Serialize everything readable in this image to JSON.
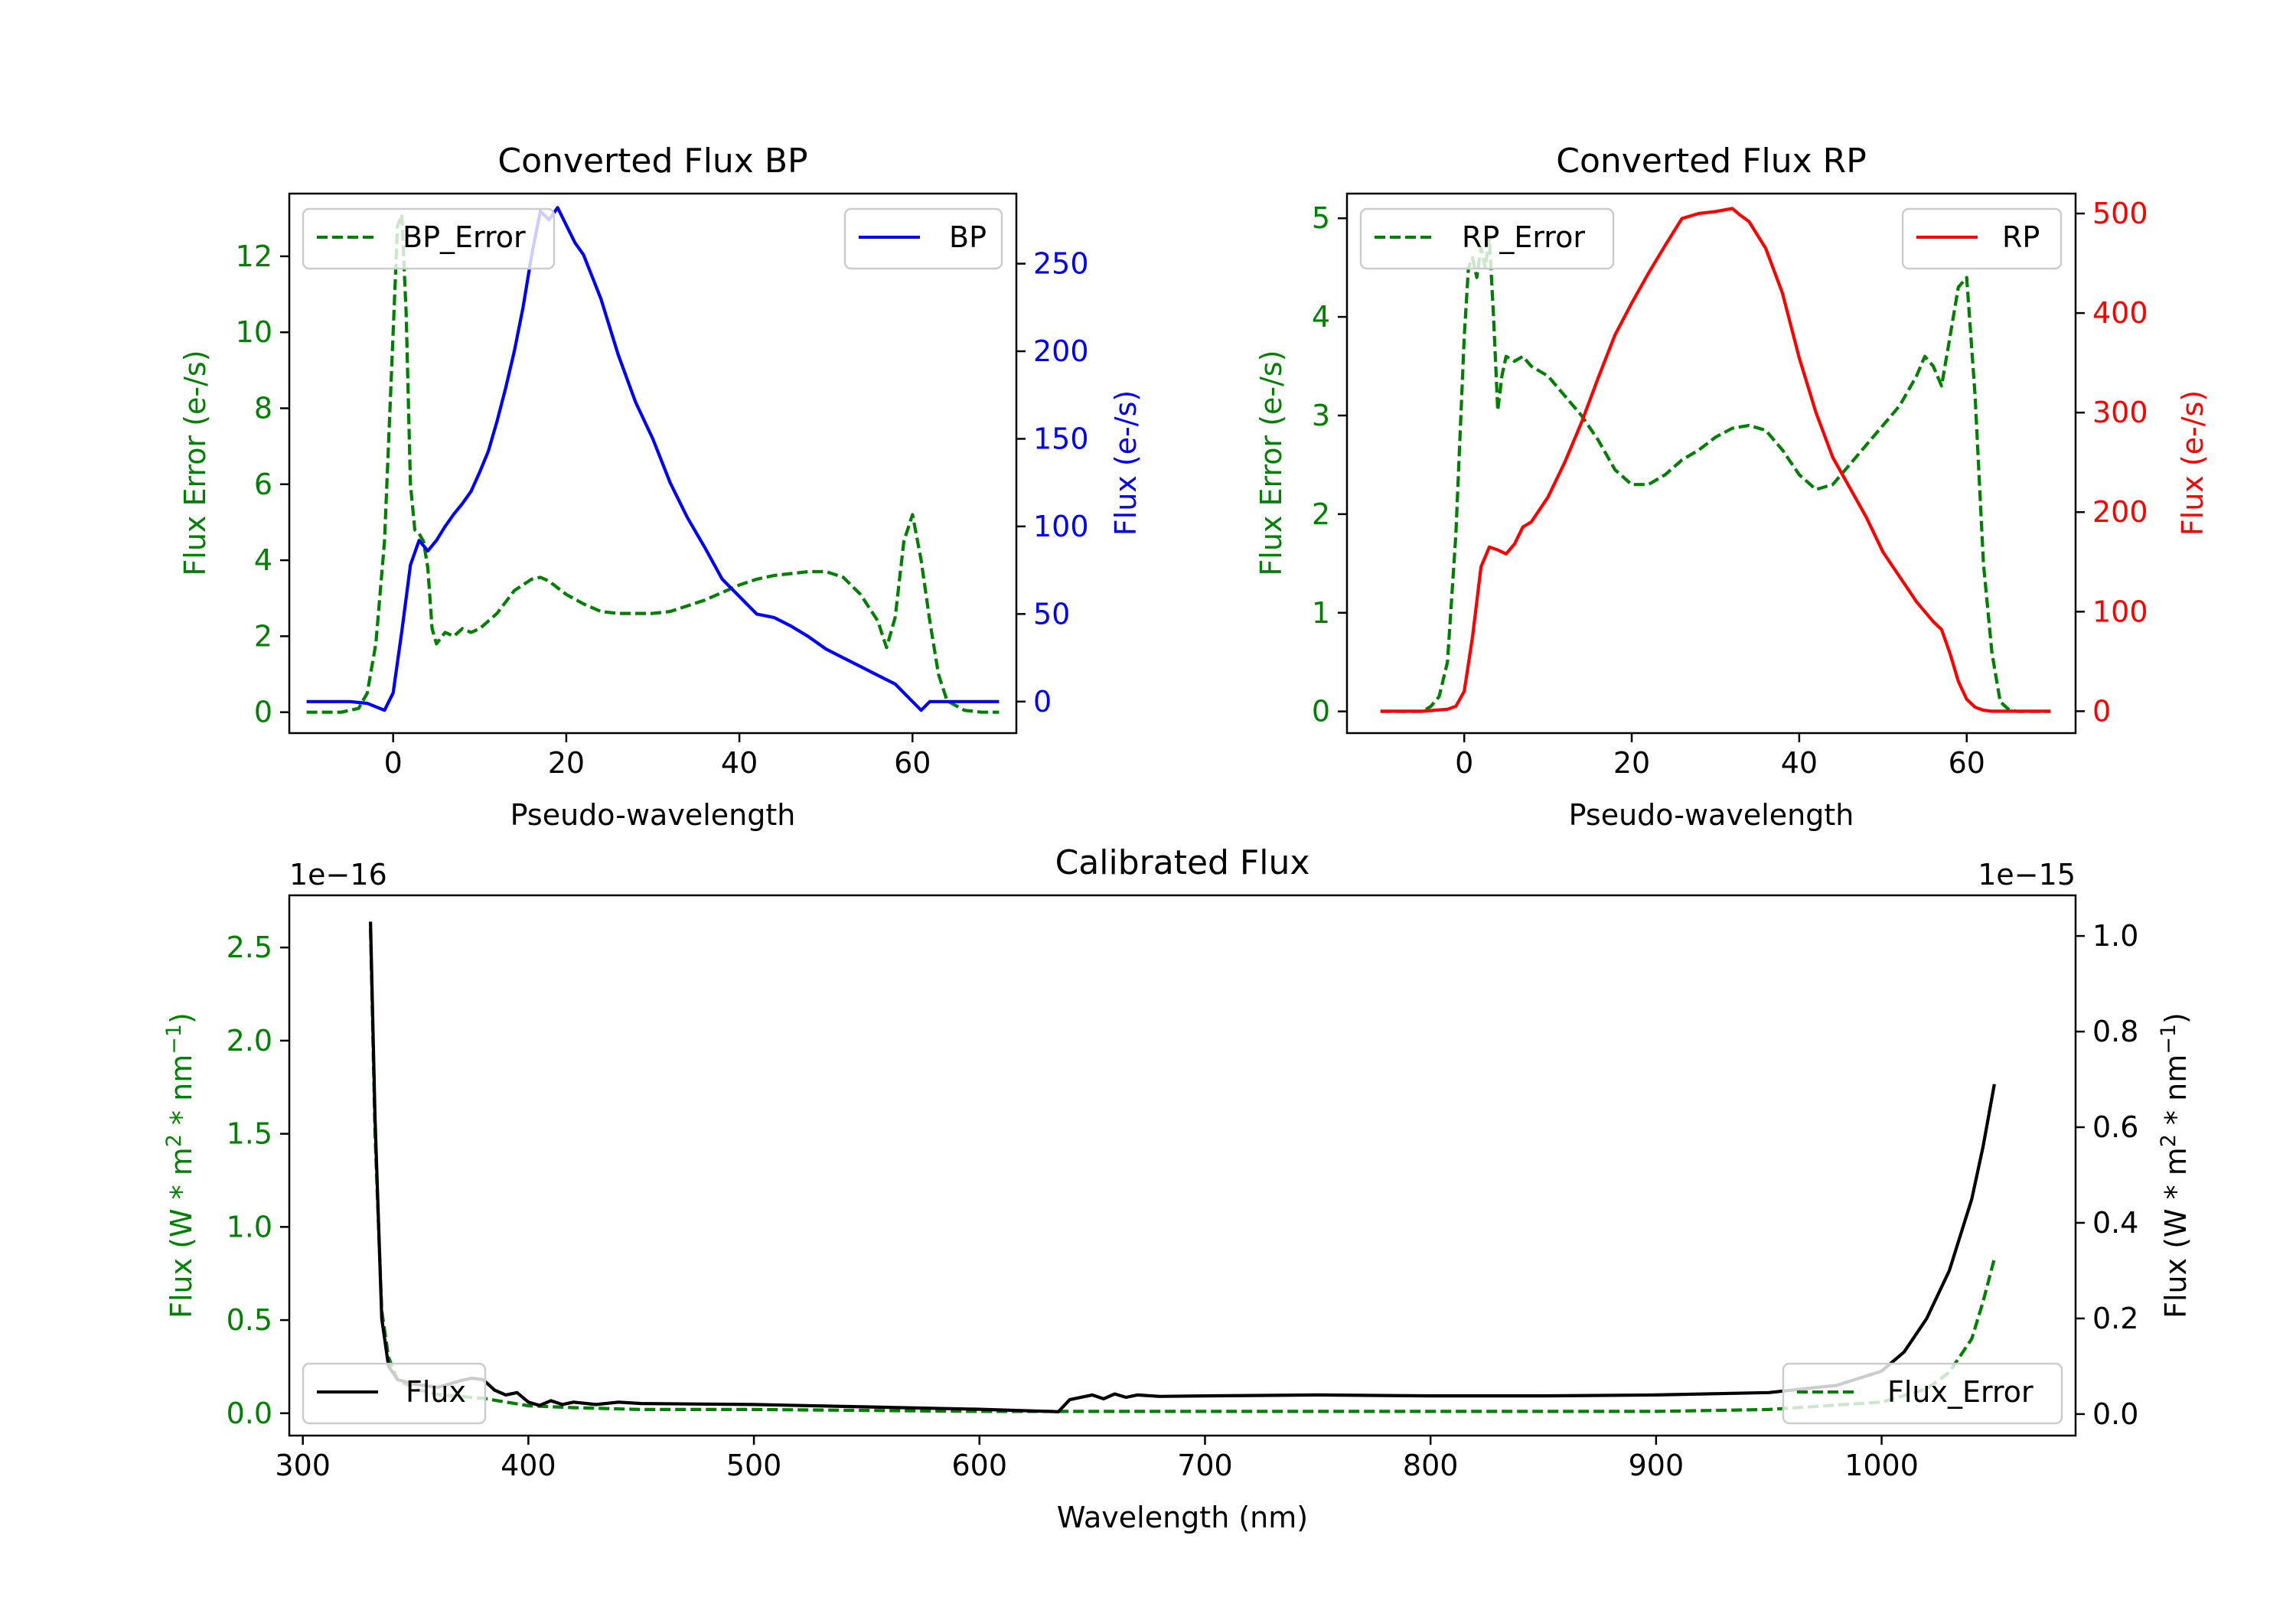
{
  "chart_data": [
    {
      "id": "bp",
      "type": "line",
      "title": "Converted Flux BP",
      "xlabel": "Pseudo-wavelength",
      "ylabel_left": "Flux Error (e-/s)",
      "ylabel_right": "Flux (e-/s)",
      "xlim": [
        -12,
        72
      ],
      "ylim_left": [
        -0.55,
        13.65
      ],
      "ylim_right": [
        -18,
        290
      ],
      "xticks": [
        0,
        20,
        40,
        60
      ],
      "yticks_left": [
        0,
        2,
        4,
        6,
        8,
        10,
        12
      ],
      "yticks_right": [
        0,
        50,
        100,
        150,
        200,
        250
      ],
      "left_color": "#008000",
      "right_color": "#0000ff",
      "series": [
        {
          "name": "BP_Error",
          "axis": "left",
          "color": "#008000",
          "style": "dashed",
          "legend": "top-left",
          "x": [
            -10,
            -6,
            -4,
            -3,
            -2,
            -1,
            0,
            0.5,
            1,
            1.5,
            2,
            2.5,
            3,
            3.5,
            4,
            4.5,
            5,
            6,
            7,
            8,
            9,
            10,
            12,
            14,
            16,
            17,
            18,
            20,
            22,
            24,
            26,
            28,
            30,
            32,
            34,
            36,
            38,
            40,
            42,
            44,
            46,
            48,
            50,
            52,
            54,
            56,
            57,
            58,
            59,
            60,
            61,
            62,
            63,
            64,
            66,
            68,
            70
          ],
          "values": [
            0,
            0,
            0.1,
            0.5,
            1.8,
            4.5,
            10,
            12.8,
            13.1,
            10.5,
            6,
            4.8,
            4.7,
            4.5,
            3.8,
            2.2,
            1.8,
            2.1,
            2,
            2.2,
            2.1,
            2.2,
            2.6,
            3.2,
            3.5,
            3.55,
            3.45,
            3.1,
            2.85,
            2.65,
            2.6,
            2.6,
            2.6,
            2.65,
            2.8,
            2.95,
            3.15,
            3.35,
            3.5,
            3.6,
            3.65,
            3.7,
            3.7,
            3.55,
            3.1,
            2.4,
            1.7,
            2.5,
            4.5,
            5.2,
            4,
            2.4,
            1,
            0.3,
            0.05,
            0,
            0
          ]
        },
        {
          "name": "BP",
          "axis": "right",
          "color": "#0000ff",
          "style": "solid",
          "legend": "top-right",
          "x": [
            -10,
            -5,
            -3,
            -1,
            0,
            1,
            2,
            3,
            4,
            5,
            6,
            7,
            8,
            9,
            10,
            11,
            12,
            13,
            14,
            15,
            16,
            17,
            18,
            19,
            20,
            21,
            22,
            24,
            26,
            28,
            30,
            32,
            34,
            36,
            38,
            40,
            42,
            44,
            46,
            48,
            50,
            52,
            54,
            56,
            58,
            60,
            61,
            62,
            65,
            70
          ],
          "values": [
            0,
            0,
            -1,
            -5,
            5,
            40,
            78,
            92,
            86,
            92,
            100,
            107,
            113,
            120,
            131,
            143,
            160,
            179,
            200,
            225,
            255,
            280,
            275,
            282,
            272,
            262,
            255,
            230,
            198,
            171,
            150,
            125,
            105,
            88,
            70,
            60,
            50,
            48,
            43,
            37,
            30,
            25,
            20,
            15,
            10,
            0,
            -5,
            0,
            0,
            0
          ]
        }
      ]
    },
    {
      "id": "rp",
      "type": "line",
      "title": "Converted Flux RP",
      "xlabel": "Pseudo-wavelength",
      "ylabel_left": "Flux Error (e-/s)",
      "ylabel_right": "Flux (e-/s)",
      "xlim": [
        -14,
        73
      ],
      "ylim_left": [
        -0.22,
        5.25
      ],
      "ylim_right": [
        -22,
        520
      ],
      "xticks": [
        0,
        20,
        40,
        60
      ],
      "yticks_left": [
        0,
        1,
        2,
        3,
        4,
        5
      ],
      "yticks_right": [
        0,
        100,
        200,
        300,
        400,
        500
      ],
      "left_color": "#008000",
      "right_color": "#ff0000",
      "series": [
        {
          "name": "RP_Error",
          "axis": "left",
          "color": "#008000",
          "style": "dashed",
          "legend": "top-left",
          "x": [
            -10,
            -5,
            -4,
            -3,
            -2,
            -1,
            0,
            0.5,
            1,
            1.5,
            2,
            2.5,
            3,
            3.5,
            4,
            4.5,
            5,
            6,
            7,
            8,
            9,
            10,
            12,
            14,
            16,
            18,
            20,
            22,
            24,
            26,
            28,
            30,
            32,
            34,
            36,
            38,
            40,
            42,
            44,
            46,
            48,
            50,
            52,
            54,
            55,
            56,
            57,
            58,
            59,
            60,
            61,
            62,
            63,
            64,
            65,
            66,
            68,
            70
          ],
          "values": [
            0,
            0,
            0.05,
            0.15,
            0.5,
            1.8,
            3.8,
            4.5,
            4.6,
            4.4,
            4.7,
            4.5,
            4.8,
            4.0,
            3.05,
            3.4,
            3.6,
            3.55,
            3.6,
            3.5,
            3.45,
            3.4,
            3.2,
            3.0,
            2.75,
            2.45,
            2.3,
            2.3,
            2.4,
            2.55,
            2.65,
            2.78,
            2.87,
            2.9,
            2.85,
            2.65,
            2.4,
            2.25,
            2.3,
            2.5,
            2.7,
            2.9,
            3.1,
            3.4,
            3.6,
            3.5,
            3.3,
            3.8,
            4.3,
            4.4,
            3.2,
            1.5,
            0.6,
            0.1,
            0.02,
            0,
            0,
            0
          ]
        },
        {
          "name": "RP",
          "axis": "right",
          "color": "#ff0000",
          "style": "solid",
          "legend": "top-right",
          "x": [
            -10,
            -5,
            -2,
            -1,
            0,
            1,
            2,
            3,
            4,
            5,
            6,
            7,
            8,
            10,
            12,
            14,
            16,
            18,
            20,
            22,
            24,
            26,
            28,
            30,
            32,
            33,
            34,
            36,
            38,
            40,
            42,
            44,
            46,
            48,
            50,
            52,
            54,
            56,
            57,
            58,
            59,
            60,
            61,
            62,
            63,
            65,
            70
          ],
          "values": [
            0,
            0,
            2,
            5,
            20,
            75,
            145,
            165,
            162,
            158,
            168,
            185,
            190,
            215,
            250,
            290,
            335,
            378,
            410,
            440,
            468,
            495,
            500,
            502,
            505,
            498,
            492,
            465,
            420,
            355,
            300,
            255,
            225,
            195,
            160,
            135,
            110,
            90,
            82,
            58,
            30,
            12,
            4,
            1,
            0,
            0,
            0
          ]
        }
      ]
    },
    {
      "id": "calibrated",
      "type": "line",
      "title": "Calibrated Flux",
      "xlabel": "Wavelength (nm)",
      "ylabel_left": "Flux (W * m^2 * nm^-1)",
      "ylabel_right": "Flux (W * m^2 * nm^-1)",
      "left_offset": "1e−16",
      "right_offset": "1e−15",
      "xlim": [
        294,
        1086
      ],
      "ylim_left": [
        -0.12,
        2.78
      ],
      "ylim_right": [
        -0.045,
        1.085
      ],
      "xticks": [
        300,
        400,
        500,
        600,
        700,
        800,
        900,
        1000
      ],
      "yticks_left": [
        0.0,
        0.5,
        1.0,
        1.5,
        2.0,
        2.5
      ],
      "yticks_right": [
        0.0,
        0.2,
        0.4,
        0.6,
        0.8,
        1.0
      ],
      "left_color": "#008000",
      "right_color": "#000000",
      "series": [
        {
          "name": "Flux_Error",
          "axis": "left",
          "color": "#008000",
          "style": "dashed",
          "legend": "bottom-right",
          "x": [
            330,
            332,
            335,
            338,
            342,
            350,
            360,
            370,
            380,
            390,
            400,
            420,
            450,
            500,
            550,
            600,
            640,
            700,
            800,
            900,
            950,
            1000,
            1020,
            1030,
            1040,
            1045,
            1050
          ],
          "values": [
            2.6,
            1.5,
            0.55,
            0.3,
            0.18,
            0.13,
            0.1,
            0.09,
            0.08,
            0.06,
            0.04,
            0.03,
            0.02,
            0.02,
            0.015,
            0.01,
            0.01,
            0.01,
            0.01,
            0.01,
            0.02,
            0.06,
            0.13,
            0.22,
            0.4,
            0.6,
            0.83
          ]
        },
        {
          "name": "Flux",
          "axis": "right",
          "color": "#000000",
          "style": "solid",
          "legend": "bottom-left",
          "x": [
            330,
            332,
            335,
            338,
            342,
            350,
            360,
            370,
            375,
            380,
            385,
            390,
            395,
            400,
            405,
            410,
            415,
            420,
            430,
            440,
            450,
            500,
            550,
            600,
            635,
            640,
            650,
            655,
            660,
            665,
            670,
            680,
            700,
            750,
            800,
            850,
            900,
            950,
            980,
            1000,
            1010,
            1020,
            1030,
            1040,
            1045,
            1050
          ],
          "values": [
            1.03,
            0.62,
            0.2,
            0.1,
            0.072,
            0.062,
            0.056,
            0.07,
            0.075,
            0.072,
            0.05,
            0.04,
            0.045,
            0.025,
            0.018,
            0.028,
            0.02,
            0.025,
            0.02,
            0.025,
            0.022,
            0.02,
            0.015,
            0.01,
            0.005,
            0.03,
            0.04,
            0.032,
            0.042,
            0.035,
            0.04,
            0.037,
            0.038,
            0.04,
            0.038,
            0.038,
            0.04,
            0.045,
            0.06,
            0.09,
            0.13,
            0.2,
            0.3,
            0.45,
            0.56,
            0.69
          ]
        }
      ]
    }
  ]
}
